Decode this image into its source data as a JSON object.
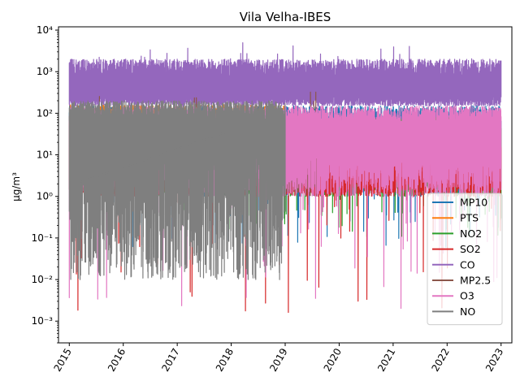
{
  "chart_data": {
    "type": "line",
    "title": "Vila Velha-IBES",
    "xlabel": "",
    "ylabel": "µg/m³",
    "yscale": "log",
    "ylim": [
      0.0003,
      12000
    ],
    "xlim": [
      2014.8,
      2023.2
    ],
    "x_ticks": [
      "2015",
      "2016",
      "2017",
      "2018",
      "2019",
      "2020",
      "2021",
      "2022",
      "2023"
    ],
    "y_ticks": [
      "10⁻³",
      "10⁻²",
      "10⁻¹",
      "10⁰",
      "10¹",
      "10²",
      "10³",
      "10⁴"
    ],
    "legend_position": "lower-right",
    "grid": false,
    "series": [
      {
        "name": "MP10",
        "color": "#1f77b4",
        "x_range": [
          2015.0,
          2023.0
        ],
        "typical_low": 1,
        "typical_high": 150,
        "min": 0.06
      },
      {
        "name": "PTS",
        "color": "#ff7f0e",
        "x_range": [
          2015.0,
          2019.0
        ],
        "typical_low": 15,
        "typical_high": 160,
        "min": 15
      },
      {
        "name": "NO2",
        "color": "#2ca02c",
        "x_range": [
          2015.0,
          2023.0
        ],
        "typical_low": 1,
        "typical_high": 80,
        "min": 0.1
      },
      {
        "name": "SO2",
        "color": "#d62728",
        "x_range": [
          2015.0,
          2023.0
        ],
        "typical_low": 1,
        "typical_high": 30,
        "min": 0.0015
      },
      {
        "name": "CO",
        "color": "#9467bd",
        "x_range": [
          2015.0,
          2023.0
        ],
        "typical_low": 150,
        "typical_high": 2000,
        "max": 5000
      },
      {
        "name": "MP2.5",
        "color": "#8c564b",
        "x_range": [
          2015.0,
          2019.6
        ],
        "typical_low": 1,
        "typical_high": 100,
        "max": 350
      },
      {
        "name": "O3",
        "color": "#e377c2",
        "x_range": [
          2015.0,
          2023.0
        ],
        "typical_low": 1,
        "typical_high": 150,
        "min": 0.0017
      },
      {
        "name": "NO",
        "color": "#7f7f7f",
        "x_range": [
          2015.0,
          2019.0
        ],
        "typical_low": 0.01,
        "typical_high": 200,
        "trend_start": [
          2015.2,
          2.2
        ],
        "trend_end": [
          2017.9,
          35
        ]
      }
    ]
  }
}
